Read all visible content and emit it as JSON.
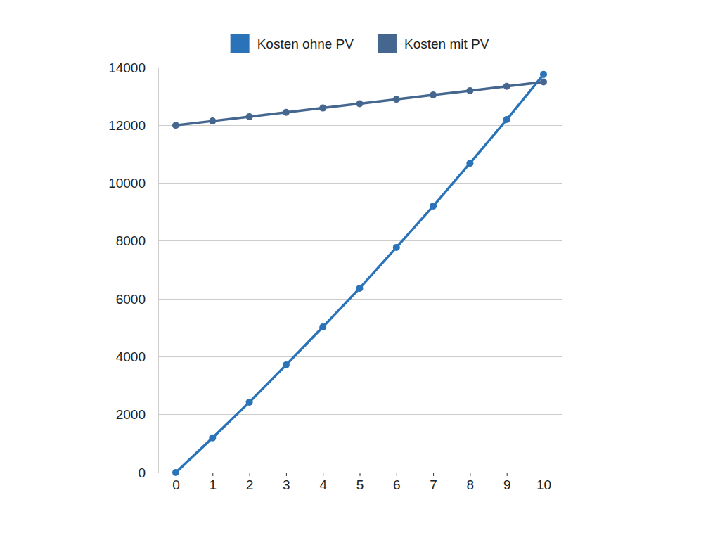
{
  "chart_data": {
    "type": "line",
    "x": [
      0,
      1,
      2,
      3,
      4,
      5,
      6,
      7,
      8,
      9,
      10
    ],
    "series": [
      {
        "name": "Kosten ohne PV",
        "color": "#2a73b8",
        "marker": "circle",
        "values": [
          0,
          1200,
          2430,
          3720,
          5030,
          6370,
          7780,
          9210,
          10690,
          12200,
          13760
        ]
      },
      {
        "name": "Kosten mit PV",
        "color": "#45678f",
        "marker": "circle",
        "values": [
          12000,
          12150,
          12300,
          12450,
          12600,
          12750,
          12900,
          13050,
          13200,
          13350,
          13500
        ]
      }
    ],
    "xlim": [
      0,
      10
    ],
    "xticks": [
      0,
      1,
      2,
      3,
      4,
      5,
      6,
      7,
      8,
      9,
      10
    ],
    "ylim": [
      0,
      14000
    ],
    "yticks": [
      0,
      2000,
      4000,
      6000,
      8000,
      10000,
      12000,
      14000
    ],
    "grid": true,
    "legend": "top"
  }
}
